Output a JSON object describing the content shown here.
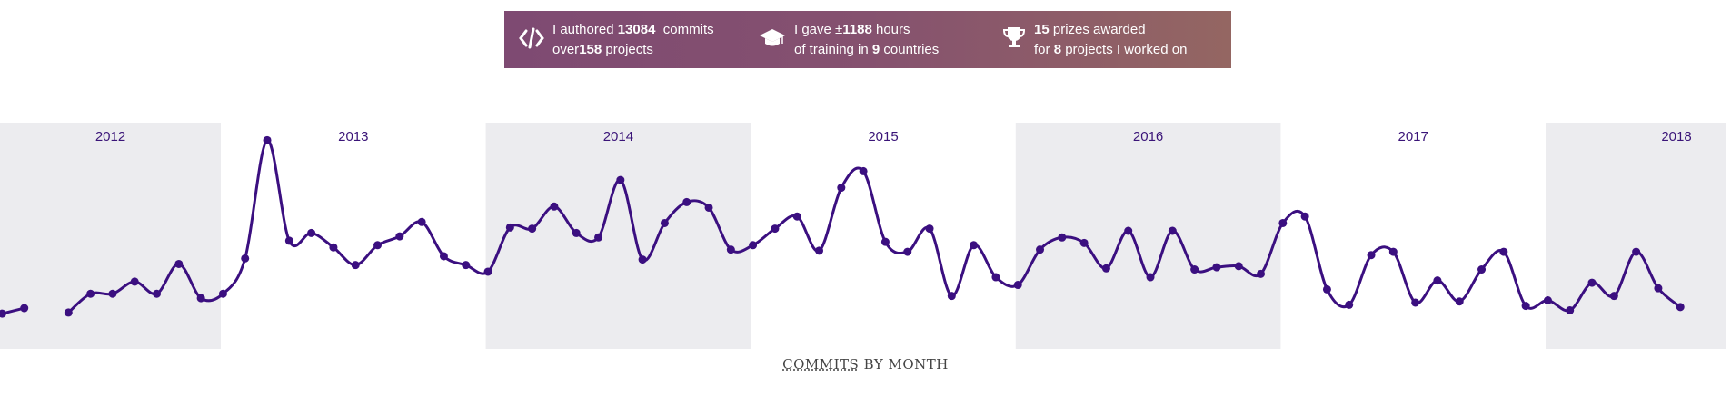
{
  "banner": {
    "commits": {
      "pre": "I authored ",
      "count": "13084",
      "link": "commits",
      "line2_pre": "over",
      "projects": "158",
      "line2_post": " projects"
    },
    "training": {
      "pre": "I gave ±",
      "hours": "1188",
      "post": " hours",
      "line2_pre": "of training in ",
      "countries": "9",
      "line2_post": " countries"
    },
    "prizes": {
      "count": "15",
      "post": " prizes awarded",
      "line2_pre": "for ",
      "projects": "8",
      "line2_post": " projects I worked on"
    }
  },
  "chart_data": {
    "type": "line",
    "title": {
      "abbr": "COMMITS",
      "rest": " BY MONTH"
    },
    "years": [
      "2012",
      "2013",
      "2014",
      "2015",
      "2016",
      "2017",
      "2018"
    ],
    "series": [
      {
        "name": null,
        "color": "#3b0f80",
        "values": [
          64,
          74,
          null,
          66,
          100,
          100,
          122,
          100,
          154,
          92,
          100,
          164,
          378,
          196,
          210,
          184,
          152,
          188,
          204,
          230,
          168,
          152,
          140,
          220,
          218,
          258,
          210,
          202,
          306,
          162,
          228,
          266,
          256,
          180,
          188,
          218,
          240,
          178,
          292,
          322,
          194,
          176,
          218,
          96,
          188,
          130,
          116,
          180,
          202,
          192,
          146,
          214,
          130,
          214,
          144,
          148,
          150,
          136,
          228,
          240,
          108,
          80,
          170,
          176,
          84,
          124,
          86,
          144,
          176,
          78,
          88,
          70,
          120,
          96,
          176,
          110,
          76
        ]
      }
    ],
    "band_color": "#ececef"
  }
}
